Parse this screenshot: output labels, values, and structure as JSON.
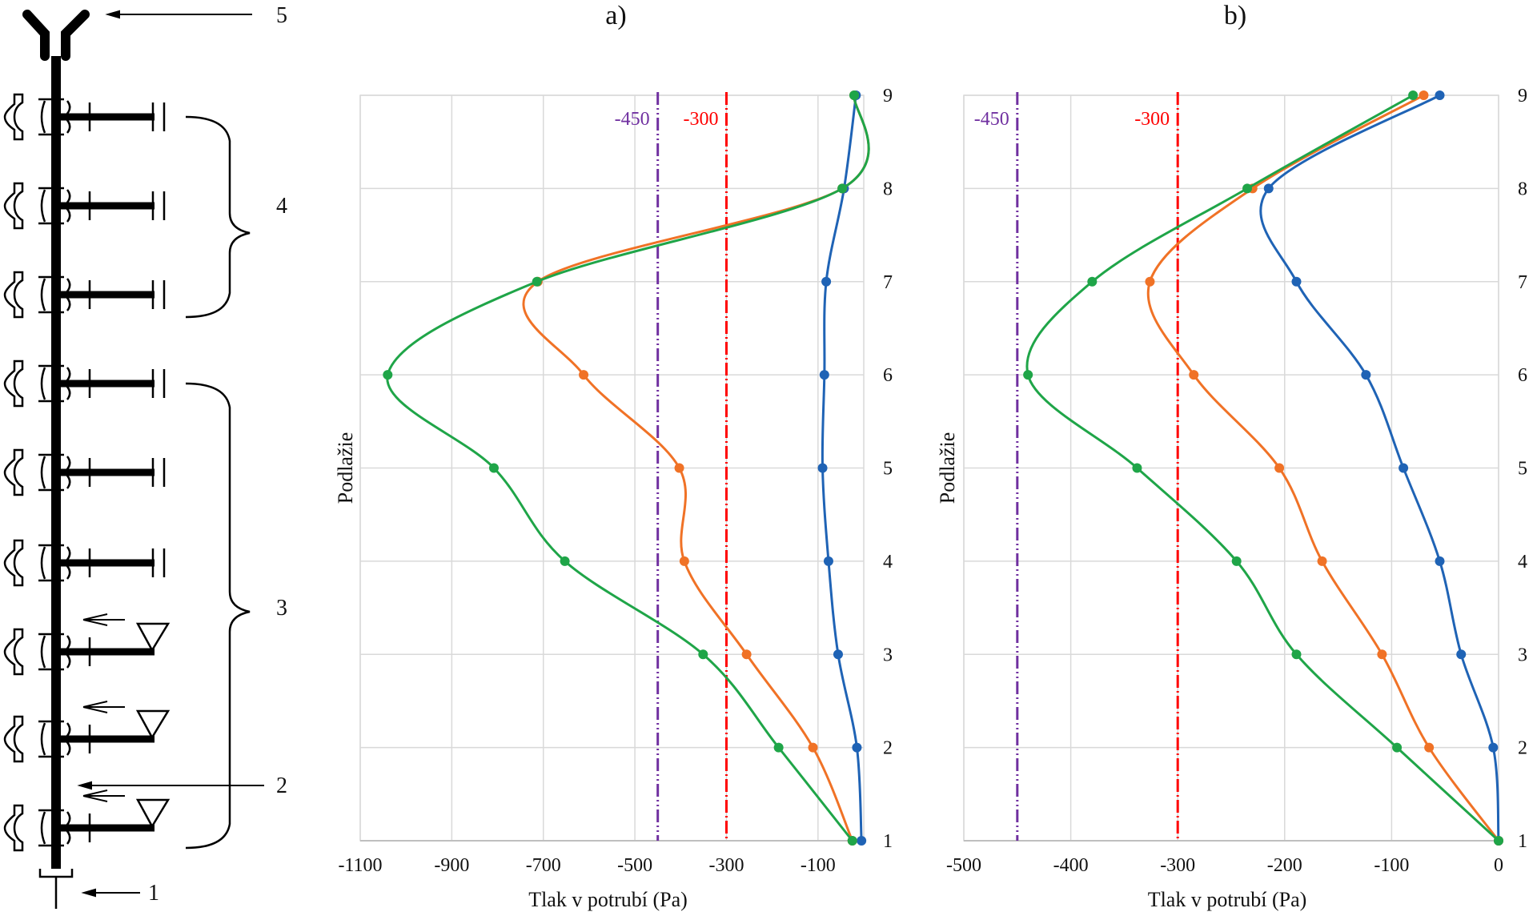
{
  "diagram": {
    "labels": [
      "1",
      "2",
      "3",
      "4",
      "5"
    ]
  },
  "chart_data": [
    {
      "type": "line",
      "title": "a)",
      "xlabel": "Tlak v potrubí (Pa)",
      "ylabel": "Podlažie",
      "xlim": [
        -1100,
        0
      ],
      "ylim": [
        1,
        9
      ],
      "x_ticks": [
        "-1100",
        "-900",
        "-700",
        "-500",
        "-300",
        "-100"
      ],
      "x_tick_values": [
        -1100,
        -900,
        -700,
        -500,
        -300,
        -100
      ],
      "y_ticks": [
        "1",
        "2",
        "3",
        "4",
        "5",
        "6",
        "7",
        "8",
        "9"
      ],
      "grid": true,
      "smooth": true,
      "reference_lines": [
        {
          "x": -450,
          "label": "-450",
          "color": "#7030a0",
          "style": "dash-dot-dot"
        },
        {
          "x": -300,
          "label": "-300",
          "color": "#ff0000",
          "style": "dash-dot"
        }
      ],
      "series": [
        {
          "color": "#1f63b5",
          "y": [
            1,
            2,
            3,
            4,
            5,
            6,
            7,
            8,
            9
          ],
          "x": [
            -5,
            -15,
            -56,
            -77,
            -90,
            -86,
            -82,
            -43,
            -17
          ]
        },
        {
          "color": "#f07226",
          "y": [
            1,
            2,
            3,
            4,
            5,
            6,
            7,
            8,
            9
          ],
          "x": [
            -25,
            -111,
            -256,
            -392,
            -403,
            -612,
            -712,
            -47,
            -21
          ]
        },
        {
          "color": "#1fa548",
          "y": [
            1,
            2,
            3,
            4,
            5,
            6,
            7,
            8,
            9
          ],
          "x": [
            -25,
            -186,
            -351,
            -653,
            -808,
            -1040,
            -714,
            -47,
            -21
          ]
        }
      ]
    },
    {
      "type": "line",
      "title": "b)",
      "xlabel": "Tlak v potrubí (Pa)",
      "ylabel": "Podlažie",
      "xlim": [
        -500,
        0
      ],
      "ylim": [
        1,
        9
      ],
      "x_ticks": [
        "-500",
        "-400",
        "-300",
        "-200",
        "-100",
        "0"
      ],
      "x_tick_values": [
        -500,
        -400,
        -300,
        -200,
        -100,
        0
      ],
      "y_ticks": [
        "1",
        "2",
        "3",
        "4",
        "5",
        "6",
        "7",
        "8",
        "9"
      ],
      "grid": true,
      "smooth": true,
      "reference_lines": [
        {
          "x": -450,
          "label": "-450",
          "color": "#7030a0",
          "style": "dash-dot-dot"
        },
        {
          "x": -300,
          "label": "-300",
          "color": "#ff0000",
          "style": "dash-dot"
        }
      ],
      "series": [
        {
          "color": "#1f63b5",
          "y": [
            1,
            2,
            3,
            4,
            5,
            6,
            7,
            8,
            9
          ],
          "x": [
            0,
            -5,
            -35,
            -55,
            -89,
            -124,
            -189,
            -215,
            -55
          ]
        },
        {
          "color": "#f07226",
          "y": [
            1,
            2,
            3,
            4,
            5,
            6,
            7,
            8,
            9
          ],
          "x": [
            0,
            -65,
            -109,
            -165,
            -205,
            -285,
            -326,
            -230,
            -70
          ]
        },
        {
          "color": "#1fa548",
          "y": [
            1,
            2,
            3,
            4,
            5,
            6,
            7,
            8,
            9
          ],
          "x": [
            0,
            -95,
            -189,
            -245,
            -338,
            -440,
            -380,
            -235,
            -80
          ]
        }
      ]
    }
  ]
}
